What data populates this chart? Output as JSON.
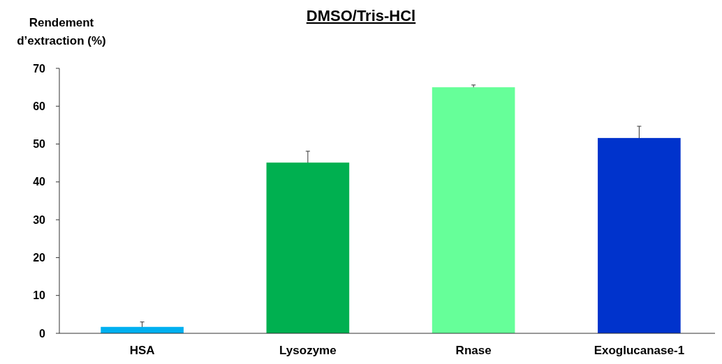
{
  "chart_data": {
    "type": "bar",
    "title": "DMSO/Tris-HCl",
    "ylabel": "Rendement d’extraction (%)",
    "categories": [
      "HSA",
      "Lysozyme",
      "Rnase",
      "Exoglucanase-1"
    ],
    "values": [
      1.7,
      45.1,
      65.0,
      51.6
    ],
    "errors": [
      1.3,
      3.0,
      0.6,
      3.1
    ],
    "colors": [
      "#00b0f0",
      "#00b050",
      "#66ff99",
      "#0033cc"
    ],
    "ylim": [
      0,
      70
    ],
    "yticks": [
      0,
      10,
      20,
      30,
      40,
      50,
      60,
      70
    ],
    "grid": false
  }
}
